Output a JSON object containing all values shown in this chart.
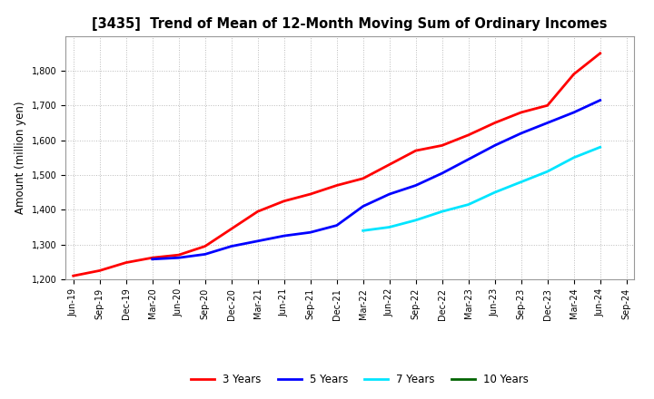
{
  "title": "[3435]  Trend of Mean of 12-Month Moving Sum of Ordinary Incomes",
  "ylabel": "Amount (million yen)",
  "ylim": [
    1200,
    1900
  ],
  "yticks": [
    1200,
    1300,
    1400,
    1500,
    1600,
    1700,
    1800
  ],
  "background_color": "#ffffff",
  "grid_color": "#bbbbbb",
  "series": {
    "3 Years": {
      "color": "#ff0000",
      "data_x": [
        "Jun-19",
        "Sep-19",
        "Dec-19",
        "Mar-20",
        "Jun-20",
        "Sep-20",
        "Dec-20",
        "Mar-21",
        "Jun-21",
        "Sep-21",
        "Dec-21",
        "Mar-22",
        "Jun-22",
        "Sep-22",
        "Dec-22",
        "Mar-23",
        "Jun-23",
        "Sep-23",
        "Dec-23",
        "Mar-24",
        "Jun-24"
      ],
      "data_y": [
        1210,
        1225,
        1248,
        1262,
        1270,
        1295,
        1345,
        1395,
        1425,
        1445,
        1470,
        1490,
        1530,
        1570,
        1585,
        1615,
        1650,
        1680,
        1700,
        1790,
        1850
      ]
    },
    "5 Years": {
      "color": "#0000ff",
      "data_x": [
        "Mar-20",
        "Jun-20",
        "Sep-20",
        "Dec-20",
        "Mar-21",
        "Jun-21",
        "Sep-21",
        "Dec-21",
        "Mar-22",
        "Jun-22",
        "Sep-22",
        "Dec-22",
        "Mar-23",
        "Jun-23",
        "Sep-23",
        "Dec-23",
        "Mar-24",
        "Jun-24"
      ],
      "data_y": [
        1258,
        1262,
        1272,
        1295,
        1310,
        1325,
        1335,
        1355,
        1410,
        1445,
        1470,
        1505,
        1545,
        1585,
        1620,
        1650,
        1680,
        1715
      ]
    },
    "7 Years": {
      "color": "#00e5ff",
      "data_x": [
        "Mar-22",
        "Jun-22",
        "Sep-22",
        "Dec-22",
        "Mar-23",
        "Jun-23",
        "Sep-23",
        "Dec-23",
        "Mar-24",
        "Jun-24"
      ],
      "data_y": [
        1340,
        1350,
        1370,
        1395,
        1415,
        1450,
        1480,
        1510,
        1550,
        1580
      ]
    },
    "10 Years": {
      "color": "#006400",
      "data_x": [],
      "data_y": []
    }
  },
  "xtick_labels": [
    "Jun-19",
    "Sep-19",
    "Dec-19",
    "Mar-20",
    "Jun-20",
    "Sep-20",
    "Dec-20",
    "Mar-21",
    "Jun-21",
    "Sep-21",
    "Dec-21",
    "Mar-22",
    "Jun-22",
    "Sep-22",
    "Dec-22",
    "Mar-23",
    "Jun-23",
    "Sep-23",
    "Dec-23",
    "Mar-24",
    "Jun-24",
    "Sep-24"
  ],
  "legend_order": [
    "3 Years",
    "5 Years",
    "7 Years",
    "10 Years"
  ],
  "line_width": 2.0,
  "title_fontsize": 10.5,
  "ylabel_fontsize": 8.5,
  "tick_fontsize": 7.0,
  "legend_fontsize": 8.5
}
